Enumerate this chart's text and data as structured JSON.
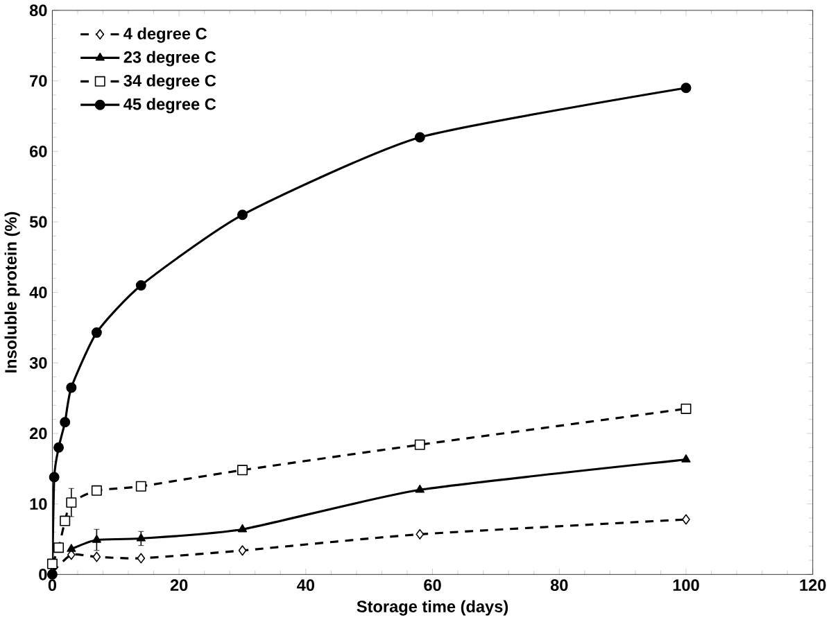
{
  "chart_data": {
    "type": "line",
    "xlabel": "Storage time (days)",
    "ylabel": "Insoluble protein (%)",
    "xlim": [
      0,
      120
    ],
    "xticks": [
      0,
      20,
      40,
      60,
      80,
      100,
      120
    ],
    "ylim": [
      0,
      80
    ],
    "yticks": [
      0,
      10,
      20,
      30,
      40,
      50,
      60,
      70,
      80
    ],
    "legend": "top left",
    "grid": false,
    "series": [
      {
        "name": "4 degree C",
        "color": "#000000",
        "marker": "diamond",
        "line_style": "dashed",
        "x": [
          0,
          3,
          7,
          14,
          30,
          58,
          100
        ],
        "values": [
          0.3,
          2.8,
          2.5,
          2.3,
          3.4,
          5.7,
          7.8
        ]
      },
      {
        "name": "23 degree C",
        "color": "#000000",
        "marker": "triangle",
        "line_style": "solid",
        "x": [
          3,
          7,
          14,
          30,
          58,
          100
        ],
        "values": [
          3.6,
          4.9,
          5.1,
          6.4,
          12,
          16.3
        ],
        "errors": [
          null,
          1.5,
          1,
          null,
          null,
          null
        ]
      },
      {
        "name": "34 degree C",
        "color": "#000000",
        "marker": "square",
        "line_style": "dashed",
        "x": [
          0,
          1,
          2,
          3,
          7,
          14,
          30,
          58,
          100
        ],
        "values": [
          1.5,
          3.8,
          7.6,
          10.2,
          11.9,
          12.5,
          14.8,
          18.4,
          23.5
        ],
        "errors": [
          null,
          null,
          null,
          2,
          null,
          null,
          null,
          null,
          null
        ]
      },
      {
        "name": "45 degree C",
        "color": "#000000",
        "marker": "circle",
        "line_style": "solid",
        "x": [
          0,
          0.3,
          1,
          2,
          3,
          7,
          14,
          30,
          58,
          100
        ],
        "values": [
          0,
          13.8,
          18,
          21.6,
          26.5,
          34.3,
          41,
          51,
          62,
          69
        ]
      }
    ]
  }
}
